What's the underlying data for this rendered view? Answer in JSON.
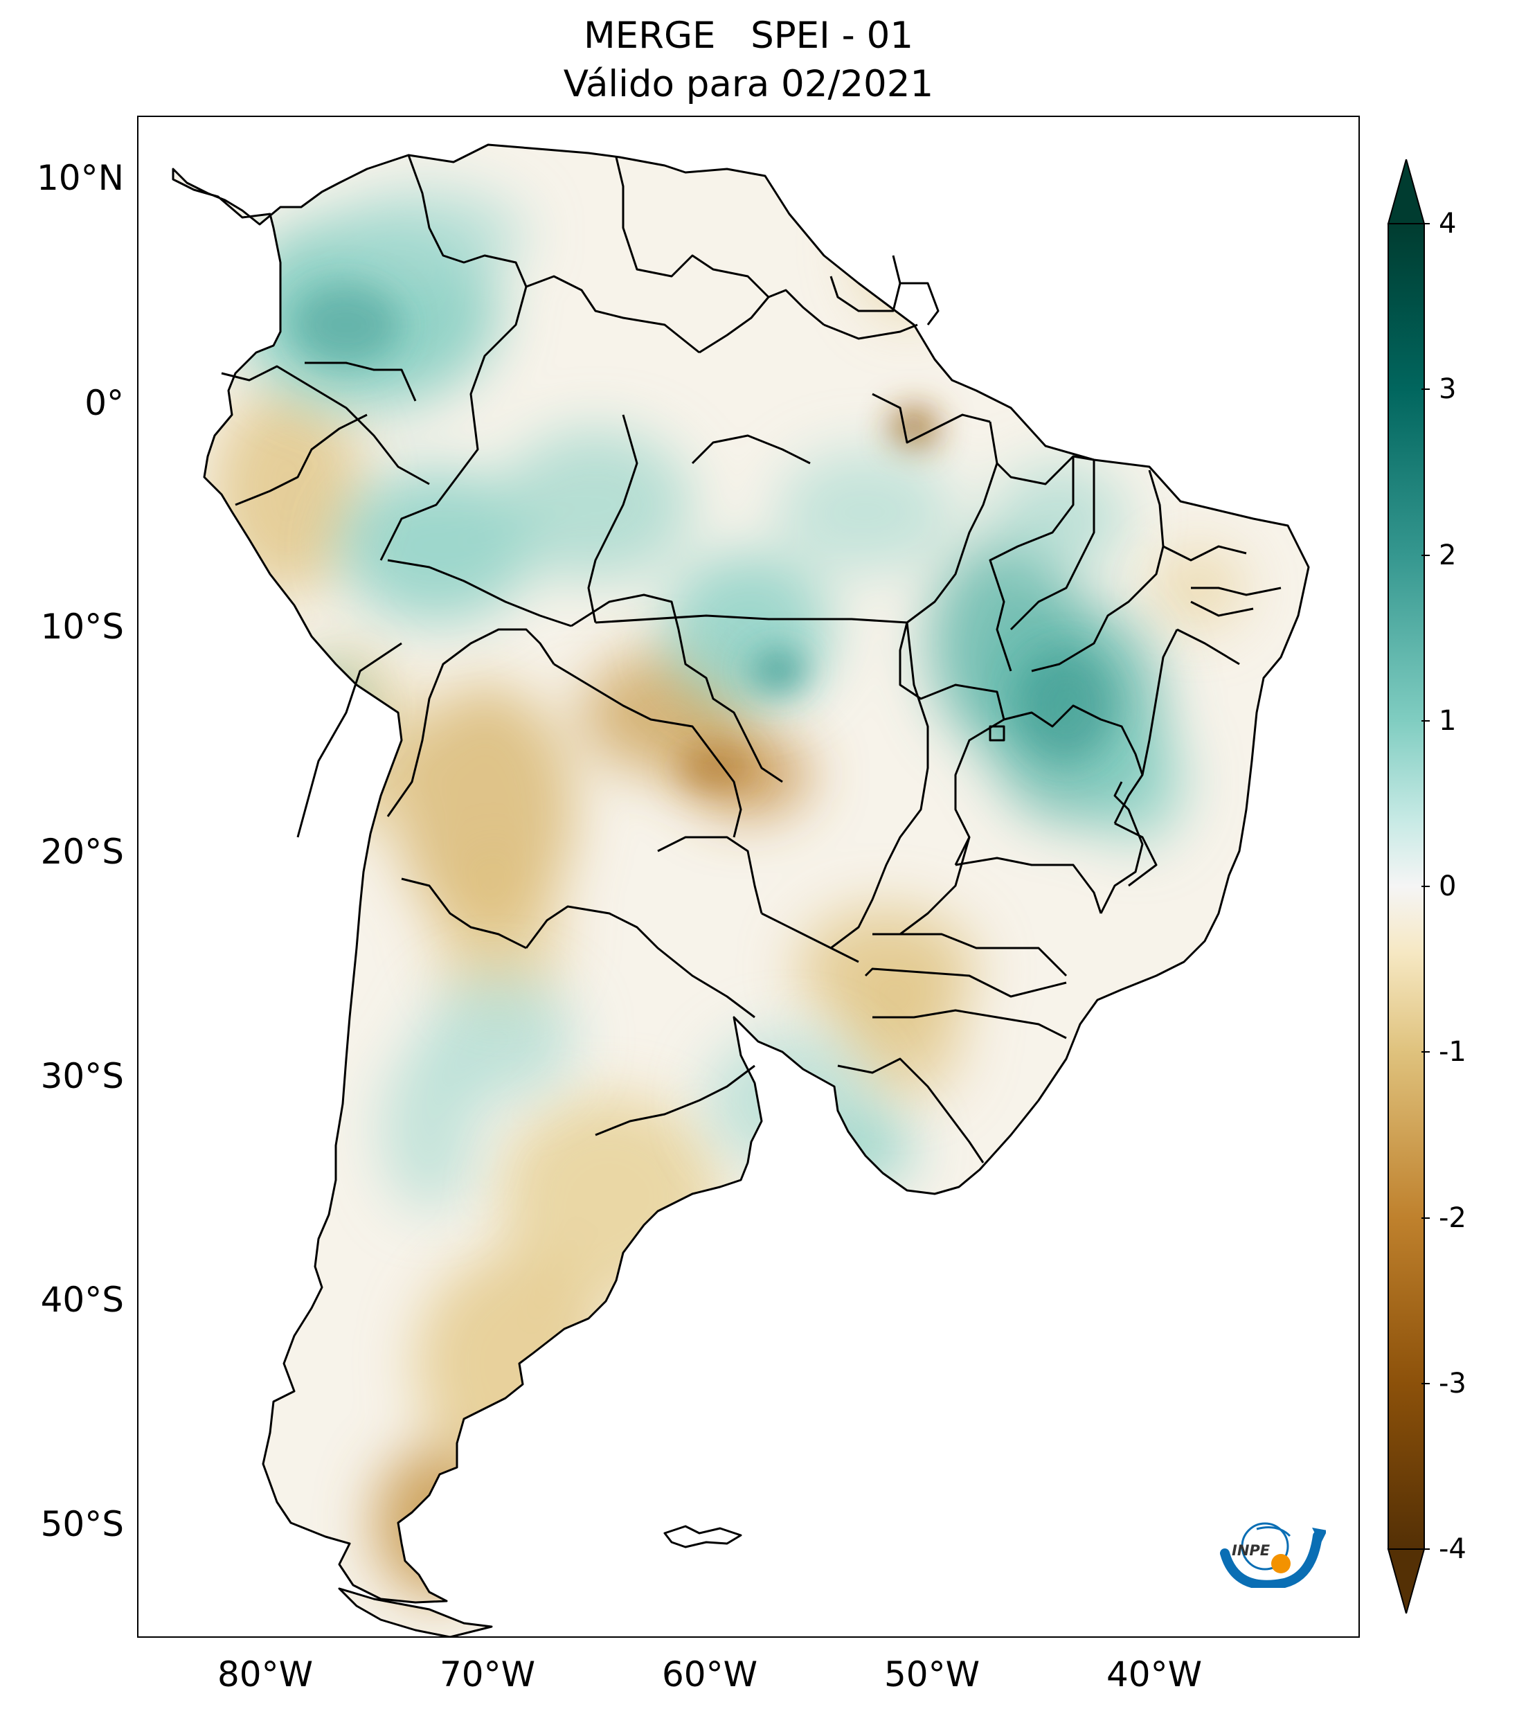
{
  "title": {
    "line1": "MERGE   SPEI - 01",
    "line2": "Válido para 02/2021"
  },
  "map": {
    "lon_range": [
      -85,
      -30
    ],
    "lat_range": [
      -56,
      13
    ],
    "lat_ticks": [
      "10°N",
      "0°",
      "10°S",
      "20°S",
      "30°S",
      "40°S",
      "50°S"
    ],
    "lon_ticks": [
      "80°W",
      "70°W",
      "60°W",
      "50°W",
      "40°W"
    ],
    "ocean_color": "#ffffff",
    "border_color": "#000000"
  },
  "colorbar": {
    "min": -4,
    "max": 4,
    "extend": "both",
    "colormap": "BrBG",
    "ticks": [
      "4",
      "3",
      "2",
      "1",
      "0",
      "-1",
      "-2",
      "-3",
      "-4"
    ],
    "colors": {
      "m4": "#543005",
      "m3": "#8c510a",
      "m2": "#bf812d",
      "m1": "#dfc27d",
      "m05": "#f6e8c3",
      "zero": "#f5f5f5",
      "p05": "#c7eae5",
      "p1": "#80cdc1",
      "p2": "#35978f",
      "p3": "#01665e",
      "p4": "#003c30"
    }
  },
  "logo": {
    "text": "INPE",
    "icon": "inpe-logo-icon",
    "blue": "#0a6eb4",
    "orange": "#f39200"
  }
}
